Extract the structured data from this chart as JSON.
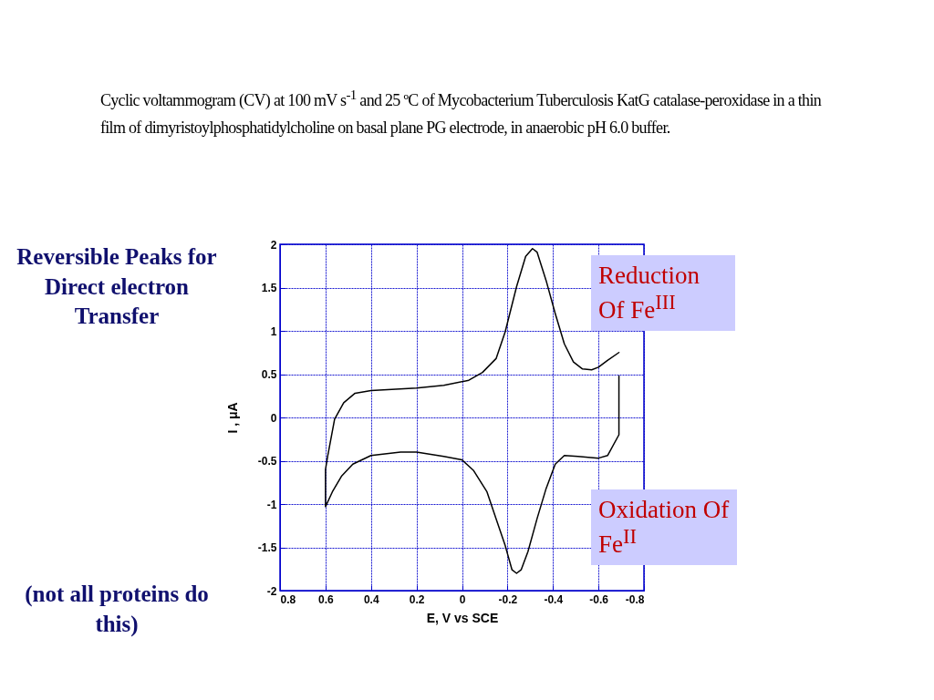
{
  "chart_data": {
    "type": "line",
    "title": "Cyclic voltammogram (CV) at 100 mV s$^{-1}$ and 25 ºC of Mycobacterium Tuberculosis KatG catalase-peroxidase in a thin film of dimyristoylphosphatidylcholine on basal plane PG electrode, in anaerobic pH 6.0 buffer.",
    "xlabel": "E, V vs SCE",
    "ylabel": "I , μA",
    "annotations": [
      "Reversible Peaks for Direct electron Transfer",
      "(not all proteins do this)",
      "Reduction Of Fe$^{III}$",
      "Oxidation Of Fe$^{II}$"
    ],
    "series": [
      {
        "color": "#000000",
        "x": [
          -0.69,
          -0.69,
          -0.64,
          -0.6,
          -0.51,
          -0.45,
          -0.41,
          -0.37,
          -0.33,
          -0.29,
          -0.26,
          -0.24,
          -0.22,
          -0.19,
          -0.15,
          -0.11,
          -0.05,
          0,
          0.08,
          0.2,
          0.27,
          0.4,
          0.48,
          0.53,
          0.57,
          0.6,
          0.6,
          0.59,
          0.56,
          0.52,
          0.47,
          0.4,
          0.2,
          0.08,
          -0.03,
          -0.09,
          -0.15,
          -0.19,
          -0.24,
          -0.28,
          -0.31,
          -0.33,
          -0.37,
          -0.41,
          -0.45,
          -0.49,
          -0.53,
          -0.57,
          -0.6,
          -0.64,
          -0.69
        ],
        "values": [
          0.48,
          -0.2,
          -0.44,
          -0.47,
          -0.45,
          -0.44,
          -0.54,
          -0.82,
          -1.17,
          -1.55,
          -1.76,
          -1.8,
          -1.76,
          -1.48,
          -1.17,
          -0.86,
          -0.61,
          -0.49,
          -0.45,
          -0.4,
          -0.4,
          -0.44,
          -0.54,
          -0.68,
          -0.86,
          -1.03,
          -0.6,
          -0.44,
          -0.02,
          0.17,
          0.28,
          0.31,
          0.34,
          0.37,
          0.43,
          0.52,
          0.68,
          0.99,
          1.51,
          1.86,
          1.95,
          1.91,
          1.58,
          1.2,
          0.85,
          0.64,
          0.56,
          0.55,
          0.58,
          0.66,
          0.75
        ]
      }
    ],
    "xlim": [
      0.8,
      -0.8
    ],
    "xticks": [
      0.8,
      0.6,
      0.4,
      0.2,
      0,
      -0.2,
      -0.4,
      -0.6,
      -0.8
    ],
    "ylim": [
      -2,
      2
    ],
    "yticks": [
      -2,
      -1.5,
      -1,
      -0.5,
      0,
      0.5,
      1,
      1.5,
      2
    ],
    "grid": true,
    "line_style": "solid"
  }
}
